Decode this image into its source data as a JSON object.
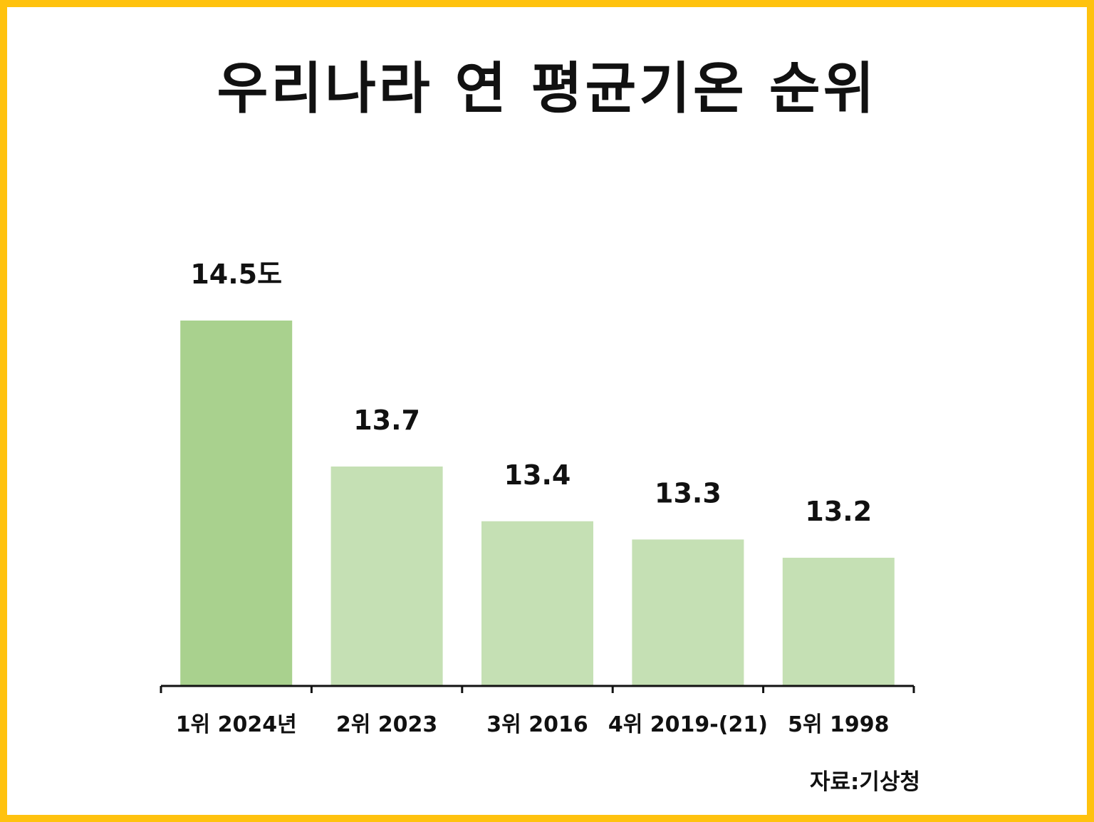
{
  "title": "우리나라 연 평균기온 순위",
  "source": "자료:기상청",
  "colors": {
    "border": "#FFC20E",
    "highlight_bar": "#A9D18E",
    "bar": "#C5E0B4",
    "axis": "#111111"
  },
  "chart_data": {
    "type": "bar",
    "title": "우리나라 연 평균기온 순위",
    "categories": [
      "1위 2024년",
      "2위 2023",
      "3위 2016",
      "4위 2019-(21)",
      "5위 1998"
    ],
    "values": [
      14.5,
      13.7,
      13.4,
      13.3,
      13.2
    ],
    "value_labels": [
      "14.5도",
      "13.7",
      "13.4",
      "13.3",
      "13.2"
    ],
    "highlight_index": 0,
    "grid": false,
    "legend": "none"
  }
}
